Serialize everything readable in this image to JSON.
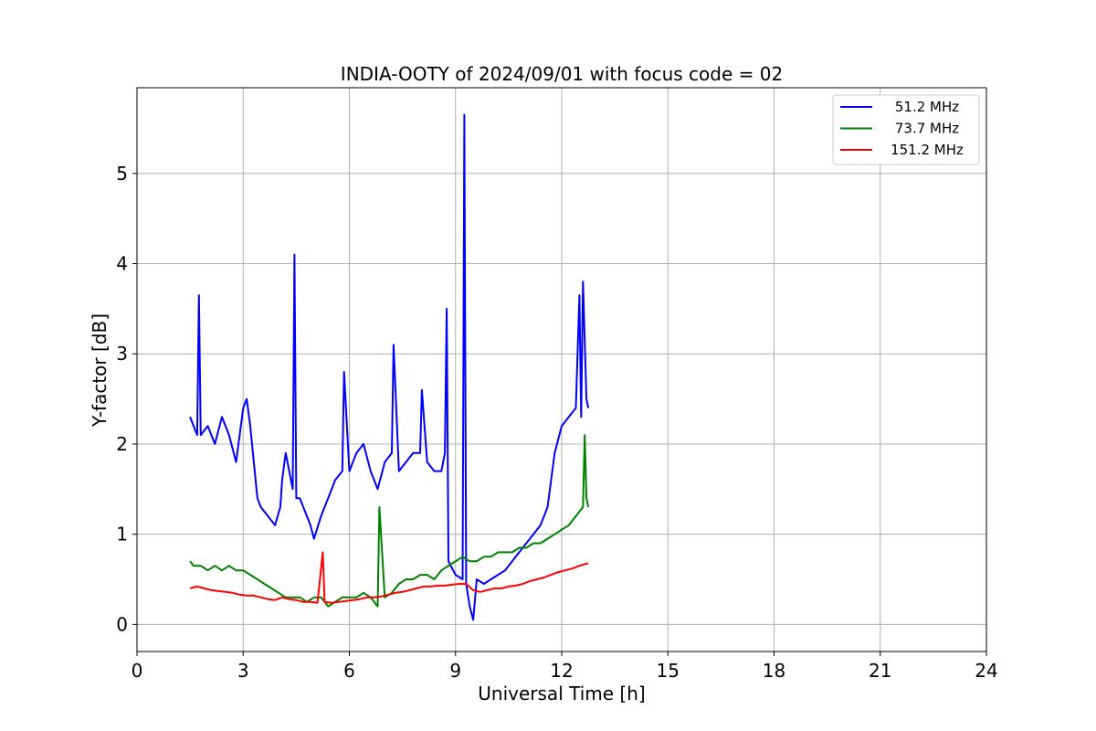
{
  "chart_data": {
    "type": "line",
    "title": "INDIA-OOTY of 2024/09/01 with focus code = 02",
    "xlabel": "Universal Time [h]",
    "ylabel": "Y-factor [dB]",
    "xlim": [
      0,
      24
    ],
    "ylim": [
      -0.3,
      5.95
    ],
    "x_ticks": [
      0,
      3,
      6,
      9,
      12,
      15,
      18,
      21,
      24
    ],
    "y_ticks": [
      0,
      1,
      2,
      3,
      4,
      5
    ],
    "grid": true,
    "legend_position": "top-right",
    "series": [
      {
        "name": "51.2 MHz",
        "color": "#0000ff",
        "x": [
          1.5,
          1.6,
          1.7,
          1.75,
          1.8,
          2.0,
          2.2,
          2.4,
          2.6,
          2.8,
          3.0,
          3.1,
          3.2,
          3.4,
          3.5,
          3.7,
          3.9,
          4.05,
          4.1,
          4.2,
          4.4,
          4.45,
          4.5,
          4.6,
          4.8,
          4.9,
          5.0,
          5.2,
          5.4,
          5.6,
          5.8,
          5.85,
          6.0,
          6.2,
          6.4,
          6.6,
          6.8,
          7.0,
          7.2,
          7.25,
          7.4,
          7.6,
          7.8,
          8.0,
          8.05,
          8.2,
          8.4,
          8.6,
          8.7,
          8.75,
          8.8,
          9.0,
          9.2,
          9.25,
          9.3,
          9.4,
          9.5,
          9.6,
          9.8,
          10.0,
          10.2,
          10.4,
          10.6,
          10.8,
          11.0,
          11.2,
          11.4,
          11.6,
          11.8,
          12.0,
          12.2,
          12.4,
          12.5,
          12.55,
          12.6,
          12.7,
          12.75
        ],
        "values": [
          2.3,
          2.2,
          2.1,
          3.65,
          2.1,
          2.2,
          2.0,
          2.3,
          2.1,
          1.8,
          2.4,
          2.5,
          2.2,
          1.4,
          1.3,
          1.2,
          1.1,
          1.3,
          1.6,
          1.9,
          1.5,
          4.1,
          1.4,
          1.4,
          1.2,
          1.1,
          0.95,
          1.2,
          1.4,
          1.6,
          1.7,
          2.8,
          1.7,
          1.9,
          2.0,
          1.7,
          1.5,
          1.8,
          1.9,
          3.1,
          1.7,
          1.8,
          1.9,
          1.9,
          2.6,
          1.8,
          1.7,
          1.7,
          1.9,
          3.5,
          0.7,
          0.55,
          0.5,
          5.65,
          0.45,
          0.2,
          0.05,
          0.5,
          0.45,
          0.5,
          0.55,
          0.6,
          0.7,
          0.8,
          0.9,
          1.0,
          1.1,
          1.3,
          1.9,
          2.2,
          2.3,
          2.4,
          3.65,
          2.3,
          3.8,
          2.5,
          2.4
        ]
      },
      {
        "name": "73.7 MHz",
        "color": "#008000",
        "x": [
          1.5,
          1.6,
          1.8,
          2.0,
          2.2,
          2.4,
          2.6,
          2.8,
          3.0,
          3.2,
          3.4,
          3.6,
          3.8,
          4.0,
          4.2,
          4.4,
          4.6,
          4.8,
          5.0,
          5.2,
          5.4,
          5.6,
          5.8,
          6.0,
          6.2,
          6.4,
          6.6,
          6.8,
          6.85,
          7.0,
          7.2,
          7.4,
          7.6,
          7.8,
          8.0,
          8.2,
          8.4,
          8.6,
          8.8,
          9.0,
          9.2,
          9.4,
          9.6,
          9.8,
          10.0,
          10.2,
          10.4,
          10.6,
          10.8,
          11.0,
          11.2,
          11.4,
          11.6,
          11.8,
          12.0,
          12.2,
          12.4,
          12.6,
          12.65,
          12.7,
          12.75
        ],
        "values": [
          0.7,
          0.65,
          0.65,
          0.6,
          0.65,
          0.6,
          0.65,
          0.6,
          0.6,
          0.55,
          0.5,
          0.45,
          0.4,
          0.35,
          0.3,
          0.3,
          0.3,
          0.25,
          0.3,
          0.3,
          0.2,
          0.25,
          0.3,
          0.3,
          0.3,
          0.35,
          0.3,
          0.2,
          1.3,
          0.3,
          0.35,
          0.45,
          0.5,
          0.5,
          0.55,
          0.55,
          0.5,
          0.6,
          0.65,
          0.7,
          0.75,
          0.7,
          0.7,
          0.75,
          0.75,
          0.8,
          0.8,
          0.8,
          0.85,
          0.85,
          0.9,
          0.9,
          0.95,
          1.0,
          1.05,
          1.1,
          1.2,
          1.3,
          2.1,
          1.4,
          1.3
        ]
      },
      {
        "name": "151.2 MHz",
        "color": "#ff0000",
        "x": [
          1.5,
          1.7,
          1.9,
          2.1,
          2.3,
          2.5,
          2.7,
          2.9,
          3.1,
          3.3,
          3.5,
          3.7,
          3.9,
          4.1,
          4.3,
          4.5,
          4.7,
          4.9,
          5.1,
          5.25,
          5.3,
          5.5,
          5.7,
          5.9,
          6.1,
          6.3,
          6.5,
          6.7,
          6.9,
          7.1,
          7.3,
          7.5,
          7.7,
          7.9,
          8.1,
          8.3,
          8.5,
          8.7,
          8.9,
          9.1,
          9.3,
          9.5,
          9.7,
          9.9,
          10.1,
          10.3,
          10.5,
          10.7,
          10.9,
          11.1,
          11.3,
          11.5,
          11.7,
          11.9,
          12.1,
          12.3,
          12.5,
          12.75
        ],
        "values": [
          0.4,
          0.42,
          0.4,
          0.38,
          0.37,
          0.36,
          0.35,
          0.33,
          0.32,
          0.32,
          0.3,
          0.28,
          0.27,
          0.3,
          0.28,
          0.27,
          0.25,
          0.25,
          0.24,
          0.8,
          0.25,
          0.24,
          0.25,
          0.26,
          0.27,
          0.28,
          0.3,
          0.3,
          0.31,
          0.33,
          0.35,
          0.36,
          0.38,
          0.4,
          0.42,
          0.42,
          0.43,
          0.43,
          0.44,
          0.45,
          0.45,
          0.38,
          0.36,
          0.38,
          0.4,
          0.4,
          0.42,
          0.43,
          0.45,
          0.48,
          0.5,
          0.52,
          0.55,
          0.58,
          0.6,
          0.62,
          0.65,
          0.68
        ]
      }
    ]
  }
}
